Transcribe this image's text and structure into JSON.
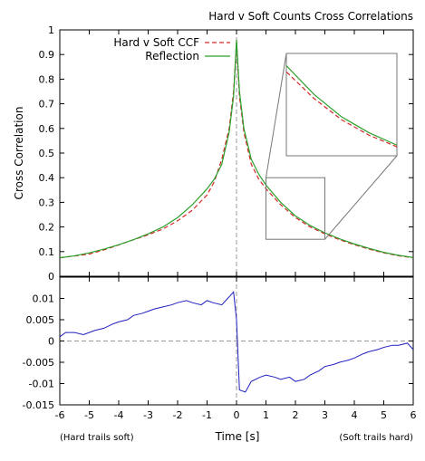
{
  "chart_data": [
    {
      "type": "line",
      "title": "Hard v Soft Counts Cross Correlations",
      "ylabel": "Cross Correlation",
      "xlim": [
        -6,
        6
      ],
      "ylim": [
        0,
        1
      ],
      "xticks": [
        "-6",
        "-5",
        "-4",
        "-3",
        "-2",
        "-1",
        "0",
        "1",
        "2",
        "3",
        "4",
        "5",
        "6"
      ],
      "yticks": [
        "0",
        "0.1",
        "0.2",
        "0.3",
        "0.4",
        "0.5",
        "0.6",
        "0.7",
        "0.8",
        "0.9",
        "1"
      ],
      "legend_position": "top-left",
      "series": [
        {
          "name": "Hard v Soft CCF",
          "color": "#d62728",
          "style": "dashed",
          "x": [
            -6,
            -5.5,
            -5,
            -4.5,
            -4,
            -3.5,
            -3,
            -2.5,
            -2,
            -1.5,
            -1,
            -0.75,
            -0.5,
            -0.25,
            -0.1,
            0,
            0.1,
            0.25,
            0.5,
            0.75,
            1,
            1.5,
            2,
            2.5,
            3,
            3.5,
            4,
            4.5,
            5,
            5.5,
            6
          ],
          "y": [
            0.075,
            0.082,
            0.09,
            0.107,
            0.127,
            0.148,
            0.168,
            0.192,
            0.225,
            0.268,
            0.33,
            0.385,
            0.475,
            0.6,
            0.75,
            0.95,
            0.73,
            0.585,
            0.455,
            0.395,
            0.355,
            0.29,
            0.238,
            0.2,
            0.172,
            0.148,
            0.128,
            0.11,
            0.095,
            0.083,
            0.075
          ]
        },
        {
          "name": "Reflection",
          "color": "#2ca02c",
          "style": "solid",
          "x": [
            -6,
            -5.5,
            -5,
            -4.5,
            -4,
            -3.5,
            -3,
            -2.5,
            -2,
            -1.5,
            -1,
            -0.75,
            -0.5,
            -0.25,
            -0.1,
            0,
            0.1,
            0.25,
            0.5,
            0.75,
            1,
            1.5,
            2,
            2.5,
            3,
            3.5,
            4,
            4.5,
            5,
            5.5,
            6
          ],
          "y": [
            0.075,
            0.083,
            0.095,
            0.11,
            0.128,
            0.148,
            0.172,
            0.2,
            0.238,
            0.29,
            0.355,
            0.395,
            0.455,
            0.585,
            0.73,
            0.96,
            0.75,
            0.6,
            0.475,
            0.415,
            0.37,
            0.3,
            0.245,
            0.206,
            0.176,
            0.152,
            0.131,
            0.113,
            0.097,
            0.085,
            0.076
          ]
        }
      ],
      "inset": {
        "xlim": [
          1,
          3
        ],
        "ylim": [
          0.15,
          0.4
        ]
      }
    },
    {
      "type": "line",
      "xlabel": "Time [s]",
      "xlim": [
        -6,
        6
      ],
      "ylim": [
        -0.015,
        0.015
      ],
      "xticks": [
        "-6",
        "-5",
        "-4",
        "-3",
        "-2",
        "-1",
        "0",
        "1",
        "2",
        "3",
        "4",
        "5",
        "6"
      ],
      "yticks": [
        "-0.015",
        "-0.01",
        "-0.005",
        "0",
        "0.005",
        "0.01"
      ],
      "annotations": {
        "left": "(Hard trails soft)",
        "right": "(Soft trails hard)"
      },
      "series": [
        {
          "color": "#1f1fbf",
          "x": [
            -6,
            -5.8,
            -5.5,
            -5.2,
            -5,
            -4.8,
            -4.5,
            -4.2,
            -4,
            -3.7,
            -3.5,
            -3.2,
            -3,
            -2.8,
            -2.5,
            -2.2,
            -2,
            -1.7,
            -1.5,
            -1.2,
            -1,
            -0.8,
            -0.5,
            -0.3,
            -0.1,
            0,
            0.1,
            0.3,
            0.5,
            0.8,
            1,
            1.3,
            1.5,
            1.8,
            2,
            2.3,
            2.5,
            2.8,
            3,
            3.3,
            3.5,
            3.8,
            4,
            4.3,
            4.5,
            4.8,
            5,
            5.3,
            5.5,
            5.8,
            6
          ],
          "y": [
            0.001,
            0.002,
            0.002,
            0.0015,
            0.002,
            0.0025,
            0.003,
            0.004,
            0.0045,
            0.005,
            0.006,
            0.0065,
            0.007,
            0.0075,
            0.008,
            0.0085,
            0.009,
            0.0095,
            0.009,
            0.0085,
            0.0095,
            0.009,
            0.0085,
            0.01,
            0.0115,
            0.005,
            -0.0115,
            -0.012,
            -0.0095,
            -0.0085,
            -0.008,
            -0.0085,
            -0.009,
            -0.0085,
            -0.0095,
            -0.009,
            -0.008,
            -0.007,
            -0.006,
            -0.0055,
            -0.005,
            -0.0045,
            -0.004,
            -0.003,
            -0.0025,
            -0.002,
            -0.0015,
            -0.001,
            -0.001,
            -0.0005,
            -0.002
          ]
        }
      ]
    }
  ]
}
